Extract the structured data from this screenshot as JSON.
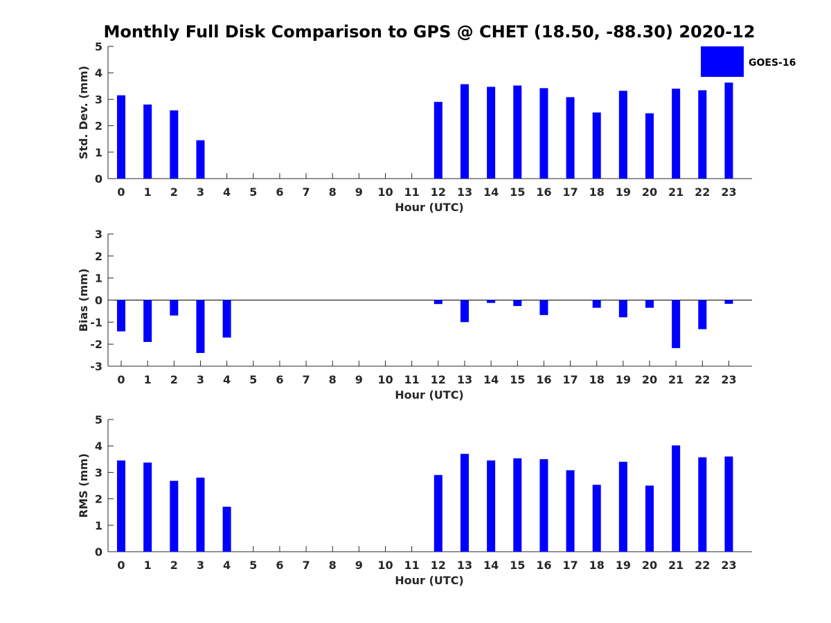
{
  "figure": {
    "title": "Monthly Full Disk Comparison to GPS @ CHET (18.50, -88.30) 2020-12",
    "legend": {
      "label": "GOES-16",
      "color": "#0000ff",
      "placement": "top-right"
    }
  },
  "chart_data": [
    {
      "type": "bar",
      "categories": [
        "0",
        "1",
        "2",
        "3",
        "4",
        "5",
        "6",
        "7",
        "8",
        "9",
        "10",
        "11",
        "12",
        "13",
        "14",
        "15",
        "16",
        "17",
        "18",
        "19",
        "20",
        "21",
        "22",
        "23"
      ],
      "series": [
        {
          "name": "GOES-16",
          "values": [
            3.15,
            2.8,
            2.58,
            1.45,
            null,
            null,
            null,
            null,
            null,
            null,
            null,
            null,
            2.9,
            3.57,
            3.47,
            3.52,
            3.42,
            3.08,
            2.5,
            3.32,
            2.47,
            3.4,
            3.34,
            3.63
          ]
        }
      ],
      "xlabel": "Hour (UTC)",
      "ylabel": "Std. Dev. (mm)",
      "ylim": [
        0,
        5
      ],
      "yticks": [
        "0",
        "1",
        "2",
        "3",
        "4",
        "5"
      ],
      "grid": false
    },
    {
      "type": "bar",
      "categories": [
        "0",
        "1",
        "2",
        "3",
        "4",
        "5",
        "6",
        "7",
        "8",
        "9",
        "10",
        "11",
        "12",
        "13",
        "14",
        "15",
        "16",
        "17",
        "18",
        "19",
        "20",
        "21",
        "22",
        "23"
      ],
      "series": [
        {
          "name": "GOES-16",
          "values": [
            -1.42,
            -1.9,
            -0.7,
            -2.4,
            -1.7,
            null,
            null,
            null,
            null,
            null,
            null,
            null,
            -0.18,
            -1.0,
            -0.13,
            -0.27,
            -0.68,
            null,
            -0.35,
            -0.78,
            -0.35,
            -2.18,
            -1.32,
            -0.17
          ]
        }
      ],
      "xlabel": "Hour (UTC)",
      "ylabel": "Bias (mm)",
      "ylim": [
        -3,
        3
      ],
      "yticks": [
        "-3",
        "-2",
        "-1",
        "0",
        "1",
        "2",
        "3"
      ],
      "zero_line": true,
      "grid": false
    },
    {
      "type": "bar",
      "categories": [
        "0",
        "1",
        "2",
        "3",
        "4",
        "5",
        "6",
        "7",
        "8",
        "9",
        "10",
        "11",
        "12",
        "13",
        "14",
        "15",
        "16",
        "17",
        "18",
        "19",
        "20",
        "21",
        "22",
        "23"
      ],
      "series": [
        {
          "name": "GOES-16",
          "values": [
            3.45,
            3.37,
            2.68,
            2.8,
            1.7,
            null,
            null,
            null,
            null,
            null,
            null,
            null,
            2.9,
            3.7,
            3.45,
            3.53,
            3.5,
            3.08,
            2.53,
            3.4,
            2.5,
            4.02,
            3.57,
            3.6
          ]
        }
      ],
      "xlabel": "Hour (UTC)",
      "ylabel": "RMS (mm)",
      "ylim": [
        0,
        5
      ],
      "yticks": [
        "0",
        "1",
        "2",
        "3",
        "4",
        "5"
      ],
      "grid": false
    }
  ]
}
